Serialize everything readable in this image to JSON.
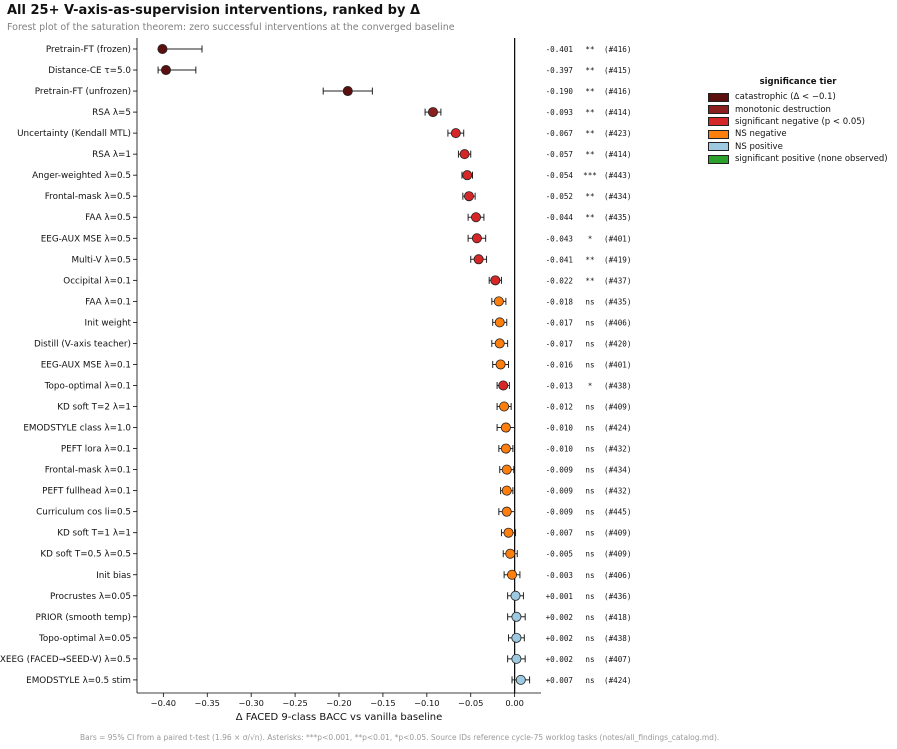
{
  "title": "All 25+ V-axis-as-supervision interventions, ranked by Δ",
  "subtitle": "Forest plot of the saturation theorem: zero successful interventions at the converged baseline",
  "footnote": "Bars = 95% CI from a paired t-test (1.96 × σ/√n).  Asterisks: ***p<0.001, **p<0.01, *p<0.05.  Source IDs reference cycle-75 worklog tasks (notes/all_findings_catalog.md).",
  "legend": {
    "title": "significance tier",
    "items": [
      {
        "label": "catastrophic (Δ < −0.1)",
        "color": "#5c0f0f"
      },
      {
        "label": "monotonic destruction",
        "color": "#8b1e1e"
      },
      {
        "label": "significant negative (p < 0.05)",
        "color": "#d62728"
      },
      {
        "label": "NS negative",
        "color": "#ff7f0e"
      },
      {
        "label": "NS positive",
        "color": "#9ecae1"
      },
      {
        "label": "significant positive  (none observed)",
        "color": "#2ca02c"
      }
    ]
  },
  "tier_colors": {
    "catastrophic": "#5c0f0f",
    "monotonic": "#8b1e1e",
    "signeg": "#d62728",
    "nsneg": "#ff7f0e",
    "nspos": "#9ecae1"
  },
  "chart_data": {
    "type": "forest",
    "xlabel": "Δ FACED 9-class BACC vs vanilla baseline",
    "xlim": [
      -0.43,
      0.03
    ],
    "xticks": [
      -0.4,
      -0.35,
      -0.3,
      -0.25,
      -0.2,
      -0.15,
      -0.1,
      -0.05,
      0.0
    ],
    "xtick_labels": [
      "−0.40",
      "−0.35",
      "−0.30",
      "−0.25",
      "−0.20",
      "−0.15",
      "−0.10",
      "−0.05",
      "0.00"
    ],
    "reference_line": 0.0,
    "rows": [
      {
        "label": "Pretrain-FT (frozen)",
        "delta": -0.401,
        "ci_low": -0.403,
        "ci_high": -0.356,
        "tier": "catastrophic",
        "delta_text": "-0.401",
        "sig": "**",
        "source": "(#416)"
      },
      {
        "label": "Distance-CE τ=5.0",
        "delta": -0.397,
        "ci_low": -0.406,
        "ci_high": -0.363,
        "tier": "catastrophic",
        "delta_text": "-0.397",
        "sig": "**",
        "source": "(#415)"
      },
      {
        "label": "Pretrain-FT (unfrozen)",
        "delta": -0.19,
        "ci_low": -0.218,
        "ci_high": -0.162,
        "tier": "catastrophic",
        "delta_text": "-0.190",
        "sig": "**",
        "source": "(#416)"
      },
      {
        "label": "RSA λ=5",
        "delta": -0.093,
        "ci_low": -0.102,
        "ci_high": -0.084,
        "tier": "monotonic",
        "delta_text": "-0.093",
        "sig": "**",
        "source": "(#414)"
      },
      {
        "label": "Uncertainty (Kendall MTL)",
        "delta": -0.067,
        "ci_low": -0.076,
        "ci_high": -0.058,
        "tier": "signeg",
        "delta_text": "-0.067",
        "sig": "**",
        "source": "(#423)"
      },
      {
        "label": "RSA λ=1",
        "delta": -0.057,
        "ci_low": -0.064,
        "ci_high": -0.05,
        "tier": "signeg",
        "delta_text": "-0.057",
        "sig": "**",
        "source": "(#414)"
      },
      {
        "label": "Anger-weighted λ=0.5",
        "delta": -0.054,
        "ci_low": -0.06,
        "ci_high": -0.048,
        "tier": "signeg",
        "delta_text": "-0.054",
        "sig": "***",
        "source": "(#443)"
      },
      {
        "label": "Frontal-mask λ=0.5",
        "delta": -0.052,
        "ci_low": -0.059,
        "ci_high": -0.045,
        "tier": "signeg",
        "delta_text": "-0.052",
        "sig": "**",
        "source": "(#434)"
      },
      {
        "label": "FAA λ=0.5",
        "delta": -0.044,
        "ci_low": -0.053,
        "ci_high": -0.035,
        "tier": "signeg",
        "delta_text": "-0.044",
        "sig": "**",
        "source": "(#435)"
      },
      {
        "label": "EEG-AUX MSE λ=0.5",
        "delta": -0.043,
        "ci_low": -0.053,
        "ci_high": -0.033,
        "tier": "signeg",
        "delta_text": "-0.043",
        "sig": "*",
        "source": "(#401)"
      },
      {
        "label": "Multi-V λ=0.5",
        "delta": -0.041,
        "ci_low": -0.05,
        "ci_high": -0.032,
        "tier": "signeg",
        "delta_text": "-0.041",
        "sig": "**",
        "source": "(#419)"
      },
      {
        "label": "Occipital λ=0.1",
        "delta": -0.022,
        "ci_low": -0.029,
        "ci_high": -0.015,
        "tier": "signeg",
        "delta_text": "-0.022",
        "sig": "**",
        "source": "(#437)"
      },
      {
        "label": "FAA λ=0.1",
        "delta": -0.018,
        "ci_low": -0.026,
        "ci_high": -0.01,
        "tier": "nsneg",
        "delta_text": "-0.018",
        "sig": "ns",
        "source": "(#435)"
      },
      {
        "label": "Init weight",
        "delta": -0.017,
        "ci_low": -0.025,
        "ci_high": -0.009,
        "tier": "nsneg",
        "delta_text": "-0.017",
        "sig": "ns",
        "source": "(#406)"
      },
      {
        "label": "Distill (V-axis teacher)",
        "delta": -0.017,
        "ci_low": -0.026,
        "ci_high": -0.008,
        "tier": "nsneg",
        "delta_text": "-0.017",
        "sig": "ns",
        "source": "(#420)"
      },
      {
        "label": "EEG-AUX MSE λ=0.1",
        "delta": -0.016,
        "ci_low": -0.025,
        "ci_high": -0.007,
        "tier": "nsneg",
        "delta_text": "-0.016",
        "sig": "ns",
        "source": "(#401)"
      },
      {
        "label": "Topo-optimal λ=0.1",
        "delta": -0.013,
        "ci_low": -0.02,
        "ci_high": -0.006,
        "tier": "signeg",
        "delta_text": "-0.013",
        "sig": "*",
        "source": "(#438)"
      },
      {
        "label": "KD soft T=2 λ=1",
        "delta": -0.012,
        "ci_low": -0.02,
        "ci_high": -0.004,
        "tier": "nsneg",
        "delta_text": "-0.012",
        "sig": "ns",
        "source": "(#409)"
      },
      {
        "label": "EMODSTYLE class λ=1.0",
        "delta": -0.01,
        "ci_low": -0.02,
        "ci_high": 0.0,
        "tier": "nsneg",
        "delta_text": "-0.010",
        "sig": "ns",
        "source": "(#424)"
      },
      {
        "label": "PEFT lora λ=0.1",
        "delta": -0.01,
        "ci_low": -0.018,
        "ci_high": -0.002,
        "tier": "nsneg",
        "delta_text": "-0.010",
        "sig": "ns",
        "source": "(#432)"
      },
      {
        "label": "Frontal-mask λ=0.1",
        "delta": -0.009,
        "ci_low": -0.017,
        "ci_high": -0.001,
        "tier": "nsneg",
        "delta_text": "-0.009",
        "sig": "ns",
        "source": "(#434)"
      },
      {
        "label": "PEFT fullhead λ=0.1",
        "delta": -0.009,
        "ci_low": -0.016,
        "ci_high": -0.002,
        "tier": "nsneg",
        "delta_text": "-0.009",
        "sig": "ns",
        "source": "(#432)"
      },
      {
        "label": "Curriculum cos li=0.5",
        "delta": -0.009,
        "ci_low": -0.018,
        "ci_high": 0.0,
        "tier": "nsneg",
        "delta_text": "-0.009",
        "sig": "ns",
        "source": "(#445)"
      },
      {
        "label": "KD soft T=1 λ=1",
        "delta": -0.007,
        "ci_low": -0.015,
        "ci_high": 0.001,
        "tier": "nsneg",
        "delta_text": "-0.007",
        "sig": "ns",
        "source": "(#409)"
      },
      {
        "label": "KD soft T=0.5 λ=0.5",
        "delta": -0.005,
        "ci_low": -0.013,
        "ci_high": 0.003,
        "tier": "nsneg",
        "delta_text": "-0.005",
        "sig": "ns",
        "source": "(#409)"
      },
      {
        "label": "Init bias",
        "delta": -0.003,
        "ci_low": -0.012,
        "ci_high": 0.006,
        "tier": "nsneg",
        "delta_text": "-0.003",
        "sig": "ns",
        "source": "(#406)"
      },
      {
        "label": "Procrustes λ=0.05",
        "delta": 0.001,
        "ci_low": -0.008,
        "ci_high": 0.01,
        "tier": "nspos",
        "delta_text": "+0.001",
        "sig": "ns",
        "source": "(#436)"
      },
      {
        "label": "PRIOR (smooth temp)",
        "delta": 0.002,
        "ci_low": -0.008,
        "ci_high": 0.012,
        "tier": "nspos",
        "delta_text": "+0.002",
        "sig": "ns",
        "source": "(#418)"
      },
      {
        "label": "Topo-optimal λ=0.05",
        "delta": 0.002,
        "ci_low": -0.007,
        "ci_high": 0.011,
        "tier": "nspos",
        "delta_text": "+0.002",
        "sig": "ns",
        "source": "(#438)"
      },
      {
        "label": "XEEG (FACED→SEED-V) λ=0.5",
        "delta": 0.002,
        "ci_low": -0.008,
        "ci_high": 0.012,
        "tier": "nspos",
        "delta_text": "+0.002",
        "sig": "ns",
        "source": "(#407)"
      },
      {
        "label": "EMODSTYLE λ=0.5 stim",
        "delta": 0.007,
        "ci_low": -0.003,
        "ci_high": 0.017,
        "tier": "nspos",
        "delta_text": "+0.007",
        "sig": "ns",
        "source": "(#424)"
      }
    ]
  }
}
